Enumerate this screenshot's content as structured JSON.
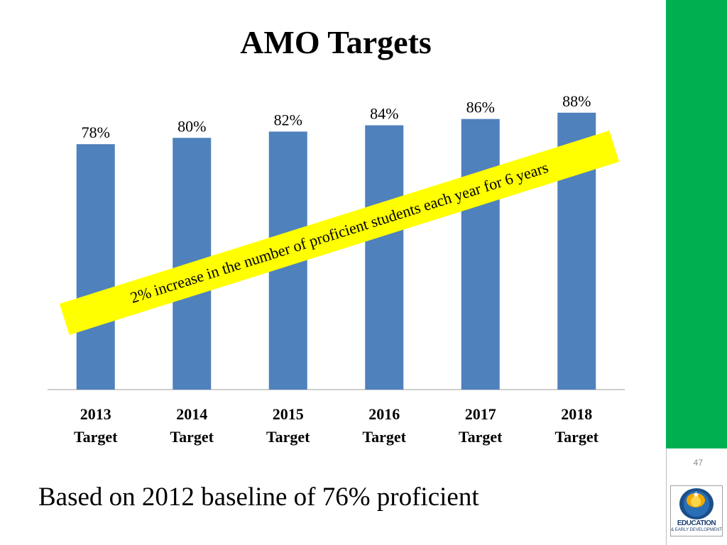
{
  "slide": {
    "title": "AMO Targets",
    "callout": "2% increase in the number of proficient students each year for 6 years",
    "footer": "Based on 2012 baseline of 76% proficient",
    "page_number": "47",
    "logo_text_main": "EDUCATION",
    "logo_text_sub": "& EARLY DEVELOPMENT"
  },
  "colors": {
    "bar": "#4f81bd",
    "side_band": "#00b050",
    "callout": "#ffff00"
  },
  "chart_data": {
    "type": "bar",
    "categories": [
      [
        "2013",
        "Target"
      ],
      [
        "2014",
        "Target"
      ],
      [
        "2015",
        "Target"
      ],
      [
        "2016",
        "Target"
      ],
      [
        "2017",
        "Target"
      ],
      [
        "2018",
        "Target"
      ]
    ],
    "values": [
      78,
      80,
      82,
      84,
      86,
      88
    ],
    "data_labels": [
      "78%",
      "80%",
      "82%",
      "84%",
      "86%",
      "88%"
    ],
    "title": "AMO Targets",
    "xlabel": "",
    "ylabel": "",
    "ylim": [
      0,
      100
    ],
    "grid": false,
    "legend": "none"
  }
}
